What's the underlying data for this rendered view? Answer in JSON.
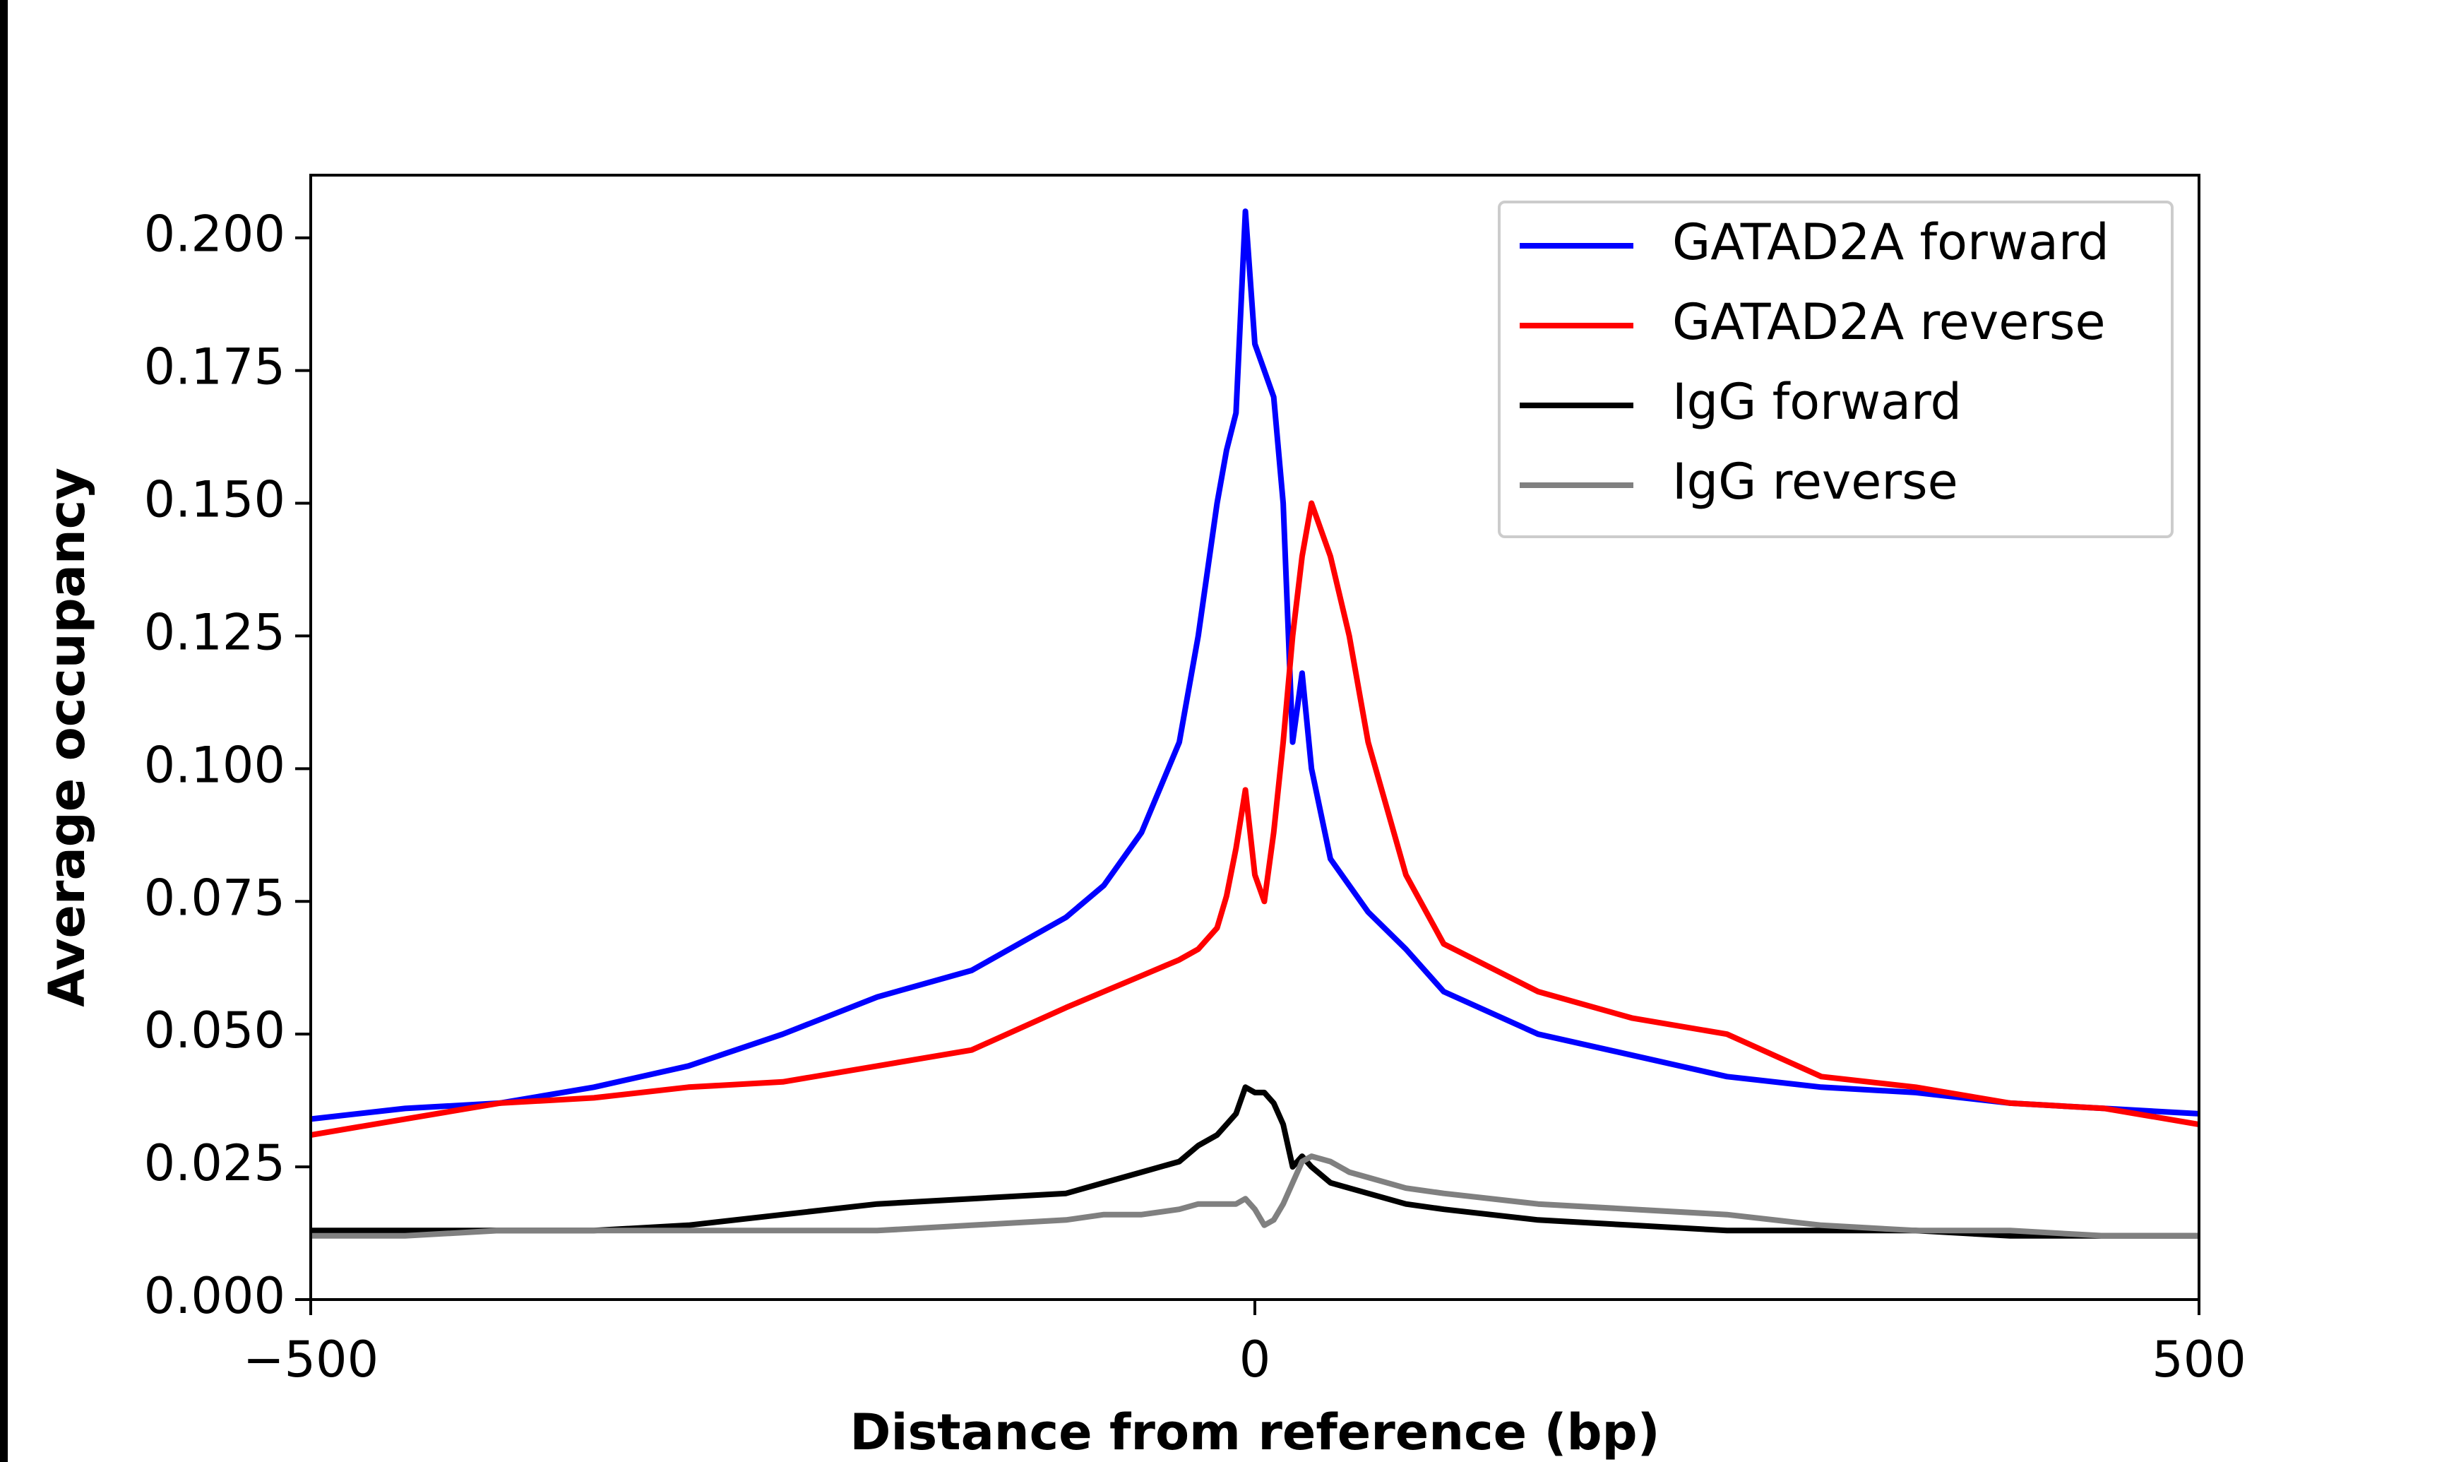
{
  "chart_data": {
    "type": "line",
    "xlabel": "Distance from reference (bp)",
    "ylabel": "Average occupancy",
    "x": [
      -500,
      -450,
      -400,
      -350,
      -300,
      -250,
      -200,
      -150,
      -100,
      -80,
      -60,
      -40,
      -30,
      -20,
      -15,
      -10,
      -5,
      0,
      5,
      10,
      15,
      20,
      25,
      30,
      40,
      50,
      60,
      80,
      100,
      150,
      200,
      250,
      300,
      350,
      400,
      450,
      500
    ],
    "series": [
      {
        "name": "GATAD2A forward",
        "color": "#0000ff",
        "values": [
          0.034,
          0.036,
          0.037,
          0.04,
          0.044,
          0.05,
          0.057,
          0.062,
          0.072,
          0.078,
          0.088,
          0.105,
          0.125,
          0.15,
          0.16,
          0.167,
          0.205,
          0.18,
          0.175,
          0.17,
          0.15,
          0.105,
          0.118,
          0.1,
          0.083,
          0.078,
          0.073,
          0.066,
          0.058,
          0.05,
          0.046,
          0.042,
          0.04,
          0.039,
          0.037,
          0.036,
          0.035
        ]
      },
      {
        "name": "GATAD2A reverse",
        "color": "#ff0000",
        "values": [
          0.031,
          0.034,
          0.037,
          0.038,
          0.04,
          0.041,
          0.044,
          0.047,
          0.055,
          0.058,
          0.061,
          0.064,
          0.066,
          0.07,
          0.076,
          0.085,
          0.096,
          0.08,
          0.075,
          0.088,
          0.105,
          0.125,
          0.14,
          0.15,
          0.14,
          0.125,
          0.105,
          0.08,
          0.067,
          0.058,
          0.053,
          0.05,
          0.042,
          0.04,
          0.037,
          0.036,
          0.033
        ]
      },
      {
        "name": "IgG forward",
        "color": "#000000",
        "values": [
          0.013,
          0.013,
          0.013,
          0.013,
          0.014,
          0.016,
          0.018,
          0.019,
          0.02,
          0.022,
          0.024,
          0.026,
          0.029,
          0.031,
          0.033,
          0.035,
          0.04,
          0.039,
          0.039,
          0.037,
          0.033,
          0.025,
          0.027,
          0.025,
          0.022,
          0.021,
          0.02,
          0.018,
          0.017,
          0.015,
          0.014,
          0.013,
          0.013,
          0.013,
          0.012,
          0.012,
          0.012
        ]
      },
      {
        "name": "IgG reverse",
        "color": "#808080",
        "values": [
          0.012,
          0.012,
          0.013,
          0.013,
          0.013,
          0.013,
          0.013,
          0.014,
          0.015,
          0.016,
          0.016,
          0.017,
          0.018,
          0.018,
          0.018,
          0.018,
          0.019,
          0.017,
          0.014,
          0.015,
          0.018,
          0.022,
          0.026,
          0.027,
          0.026,
          0.024,
          0.023,
          0.021,
          0.02,
          0.018,
          0.017,
          0.016,
          0.014,
          0.013,
          0.013,
          0.012,
          0.012
        ]
      }
    ],
    "xlim": [
      -500,
      500
    ],
    "ylim": [
      0,
      0.2118
    ],
    "xticks": [
      {
        "value": -500,
        "label": "−500"
      },
      0,
      500
    ],
    "yticks": [
      {
        "value": 0,
        "label": "0.000"
      },
      {
        "value": 0.025,
        "label": "0.025"
      },
      {
        "value": 0.05,
        "label": "0.050"
      },
      {
        "value": 0.075,
        "label": "0.075"
      },
      {
        "value": 0.1,
        "label": "0.100"
      },
      {
        "value": 0.125,
        "label": "0.125"
      },
      {
        "value": 0.15,
        "label": "0.150"
      },
      {
        "value": 0.175,
        "label": "0.175"
      },
      {
        "value": 0.2,
        "label": "0.200"
      }
    ],
    "grid": false,
    "legend": "upper right"
  }
}
